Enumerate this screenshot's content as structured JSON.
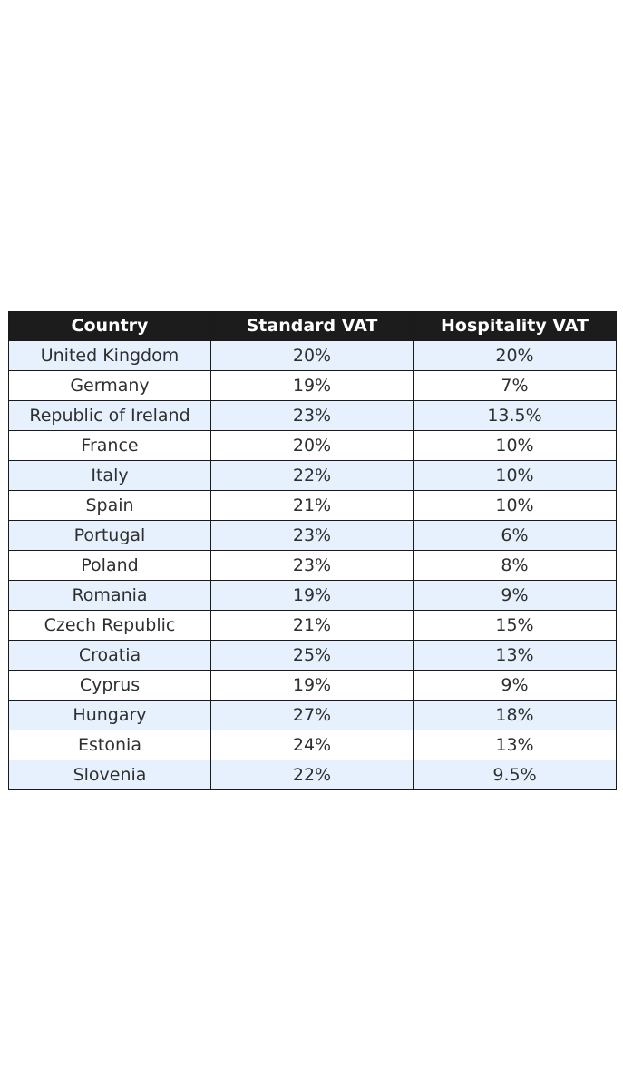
{
  "chart_data": {
    "type": "table",
    "columns": [
      "Country",
      "Standard VAT",
      "Hospitality VAT"
    ],
    "rows": [
      [
        "United Kingdom",
        "20%",
        "20%"
      ],
      [
        "Germany",
        "19%",
        "7%"
      ],
      [
        "Republic of Ireland",
        "23%",
        "13.5%"
      ],
      [
        "France",
        "20%",
        "10%"
      ],
      [
        "Italy",
        "22%",
        "10%"
      ],
      [
        "Spain",
        "21%",
        "10%"
      ],
      [
        "Portugal",
        "23%",
        "6%"
      ],
      [
        "Poland",
        "23%",
        "8%"
      ],
      [
        "Romania",
        "19%",
        "9%"
      ],
      [
        "Czech Republic",
        "21%",
        "15%"
      ],
      [
        "Croatia",
        "25%",
        "13%"
      ],
      [
        "Cyprus",
        "19%",
        "9%"
      ],
      [
        "Hungary",
        "27%",
        "18%"
      ],
      [
        "Estonia",
        "24%",
        "13%"
      ],
      [
        "Slovenia",
        "22%",
        "9.5%"
      ]
    ]
  },
  "colors": {
    "header_background": "#1c1c1c",
    "header_text": "#ffffff",
    "row_striped_background": "#e6f1fd",
    "row_plain_background": "#ffffff",
    "cell_text": "#2f2f2f",
    "border": "#1a1a1a"
  }
}
